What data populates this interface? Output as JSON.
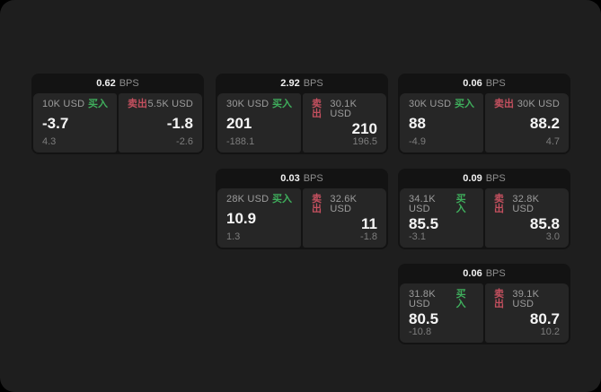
{
  "colors": {
    "backdrop": "#000000",
    "page_bg": "#1e1e1e",
    "card_bg": "#131313",
    "tile_bg": "#262626",
    "buy_green": "#3fae5c",
    "sell_red": "#c4505f",
    "text_primary": "#f2f2f2",
    "text_muted": "#9c9c9c",
    "text_faint": "#7d7d7d"
  },
  "labels": {
    "bps_unit": "BPS",
    "buy": "买入",
    "sell": "卖出"
  },
  "cards": [
    {
      "bps": "0.62",
      "buy": {
        "amount": "10K USD",
        "price": "-3.7",
        "delta": "4.3"
      },
      "sell": {
        "amount": "5.5K USD",
        "price": "-1.8",
        "delta": "-2.6"
      }
    },
    {
      "bps": "2.92",
      "buy": {
        "amount": "30K USD",
        "price": "201",
        "delta": "-188.1"
      },
      "sell": {
        "amount": "30.1K USD",
        "price": "210",
        "delta": "196.5"
      }
    },
    {
      "bps": "0.06",
      "buy": {
        "amount": "30K USD",
        "price": "88",
        "delta": "-4.9"
      },
      "sell": {
        "amount": "30K USD",
        "price": "88.2",
        "delta": "4.7"
      }
    },
    {
      "bps": "0.03",
      "buy": {
        "amount": "28K USD",
        "price": "10.9",
        "delta": "1.3"
      },
      "sell": {
        "amount": "32.6K USD",
        "price": "11",
        "delta": "-1.8"
      }
    },
    {
      "bps": "0.09",
      "buy": {
        "amount": "34.1K USD",
        "price": "85.5",
        "delta": "-3.1"
      },
      "sell": {
        "amount": "32.8K USD",
        "price": "85.8",
        "delta": "3.0"
      }
    },
    {
      "bps": "0.06",
      "buy": {
        "amount": "31.8K USD",
        "price": "80.5",
        "delta": "-10.8"
      },
      "sell": {
        "amount": "39.1K USD",
        "price": "80.7",
        "delta": "10.2"
      }
    }
  ]
}
